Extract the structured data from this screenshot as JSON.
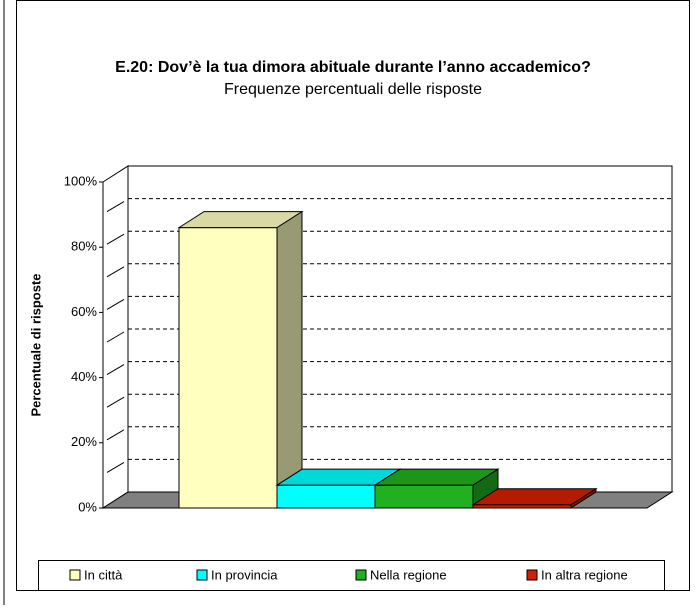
{
  "chart_data": {
    "type": "bar3d",
    "title": "E.20: Dov’è la tua dimora abituale durante l’anno accademico?",
    "subtitle": "Frequenze percentuali delle risposte",
    "y_label": "Percentuale di risposte",
    "categories": [
      null
    ],
    "series": [
      {
        "name": "In città",
        "color": "#ffffc0",
        "values": [
          86
        ]
      },
      {
        "name": "In provincia",
        "color": "#00ffff",
        "values": [
          7
        ]
      },
      {
        "name": "Nella regione",
        "color": "#20b020",
        "values": [
          7
        ]
      },
      {
        "name": "In altra regione",
        "color": "#d42000",
        "values": [
          1
        ]
      }
    ],
    "ylim": [
      0,
      100
    ],
    "yticks": [
      {
        "value": 0,
        "label": "0%"
      },
      {
        "value": 20,
        "label": "20%"
      },
      {
        "value": 40,
        "label": "40%"
      },
      {
        "value": 60,
        "label": "60%"
      },
      {
        "value": 80,
        "label": "80%"
      },
      {
        "value": 100,
        "label": "100%"
      }
    ],
    "yticks_minor": [
      10,
      30,
      50,
      70,
      90
    ],
    "grid": true,
    "legend": "bottom"
  }
}
